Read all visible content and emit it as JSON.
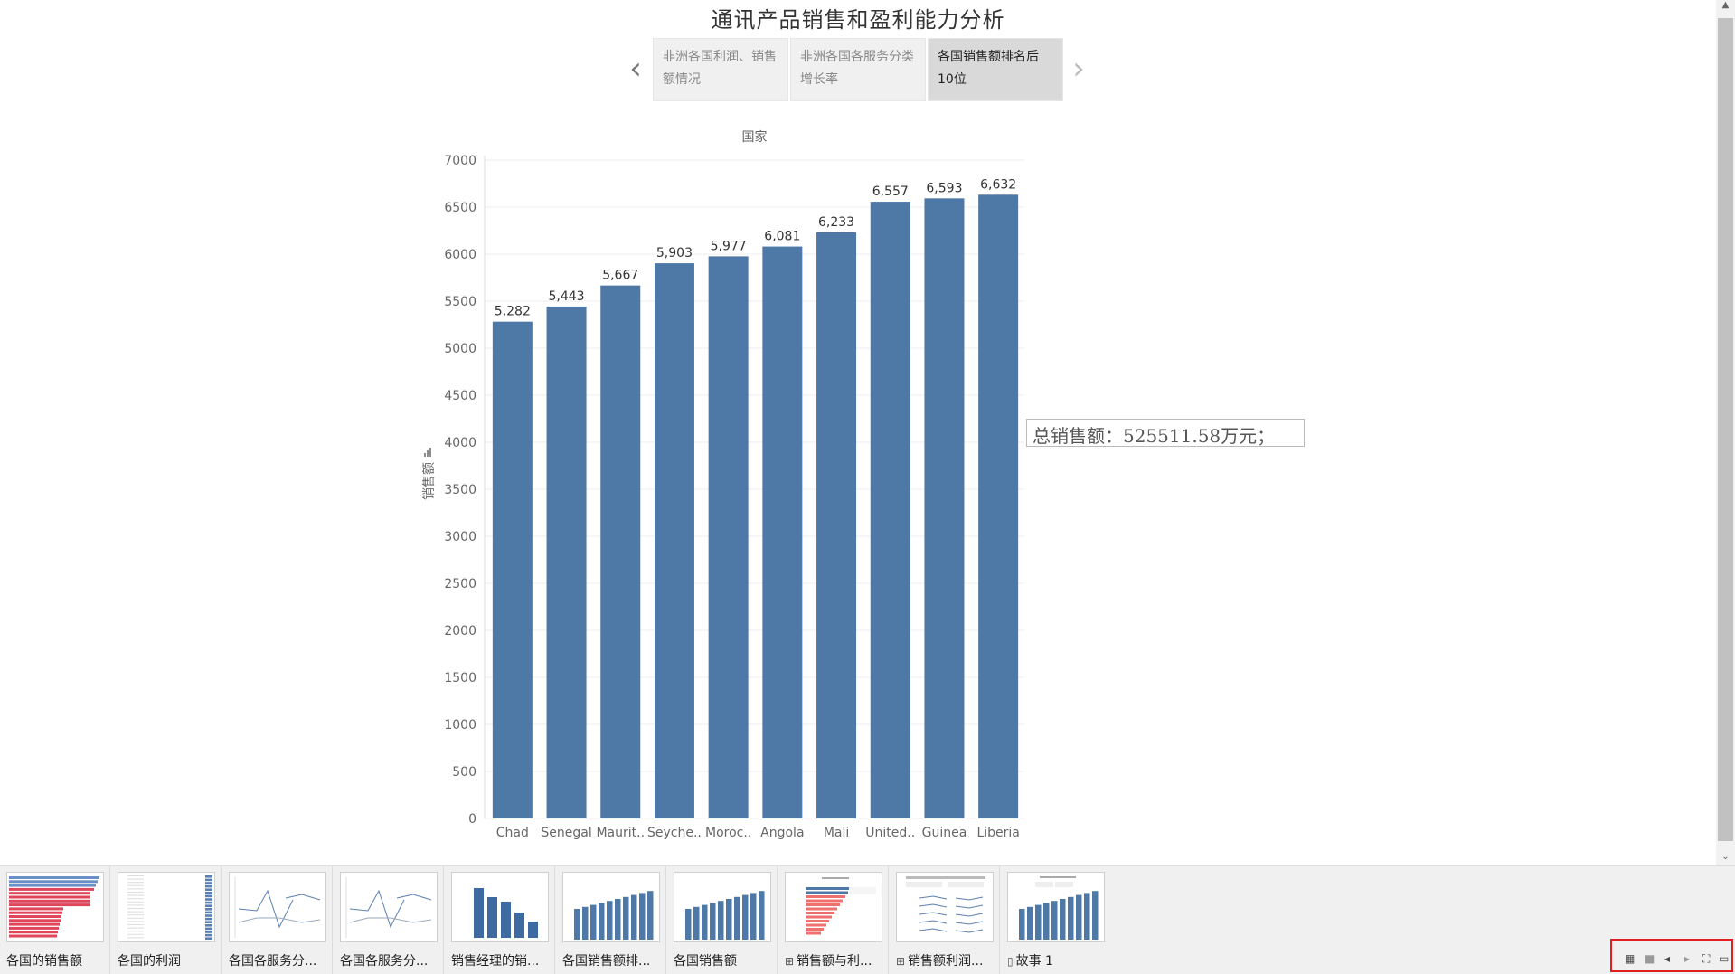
{
  "story": {
    "title": "通讯产品销售和盈利能力分析",
    "points": [
      {
        "label": "非洲各国利润、销售额情况"
      },
      {
        "label": "非洲各国各服务分类增长率"
      },
      {
        "label": "各国销售额排名后10位"
      }
    ],
    "active_point": 2,
    "nav_prev": "‹",
    "nav_next": "›"
  },
  "chart_data": {
    "type": "bar",
    "title": "国家",
    "ylabel": "销售额",
    "categories": [
      "Chad",
      "Senegal",
      "Maurit..",
      "Seyche..",
      "Moroc..",
      "Angola",
      "Mali",
      "United..",
      "Guinea",
      "Liberia"
    ],
    "values": [
      5282,
      5443,
      5667,
      5903,
      5977,
      6081,
      6233,
      6557,
      6593,
      6632
    ],
    "value_labels": [
      "5,282",
      "5,443",
      "5,667",
      "5,903",
      "5,977",
      "6,081",
      "6,233",
      "6,557",
      "6,593",
      "6,632"
    ],
    "ylim": [
      0,
      7000
    ],
    "yticks": [
      0,
      500,
      1000,
      1500,
      2000,
      2500,
      3000,
      3500,
      4000,
      4500,
      5000,
      5500,
      6000,
      6500,
      7000
    ],
    "grid": true,
    "bar_color": "#4e79a7"
  },
  "annotation": {
    "text": "总销售额：525511.58万元；"
  },
  "sheet_tabs": [
    {
      "label": "各国的销售额",
      "icon": "worksheet-icon",
      "type": ""
    },
    {
      "label": "各国的利润",
      "icon": "worksheet-icon",
      "type": ""
    },
    {
      "label": "各国各服务分...",
      "icon": "worksheet-icon",
      "type": ""
    },
    {
      "label": "各国各服务分...",
      "icon": "worksheet-icon",
      "type": ""
    },
    {
      "label": "销售经理的销...",
      "icon": "worksheet-icon",
      "type": ""
    },
    {
      "label": "各国销售额排...",
      "icon": "worksheet-icon",
      "type": ""
    },
    {
      "label": "各国销售额",
      "icon": "worksheet-icon",
      "type": ""
    },
    {
      "label": "销售额与利...",
      "icon": "dashboard-icon",
      "type": "⊞"
    },
    {
      "label": "销售额利润...",
      "icon": "dashboard-icon",
      "type": "⊞"
    },
    {
      "label": "故事 1",
      "icon": "story-icon",
      "type": "▯"
    }
  ],
  "status_bar": {
    "icons": [
      "show-sheet-sorter-icon",
      "show-filmstrip-icon",
      "previous-sheet-icon",
      "next-sheet-icon",
      "presentation-mode-icon",
      "show-tabs-icon"
    ]
  }
}
